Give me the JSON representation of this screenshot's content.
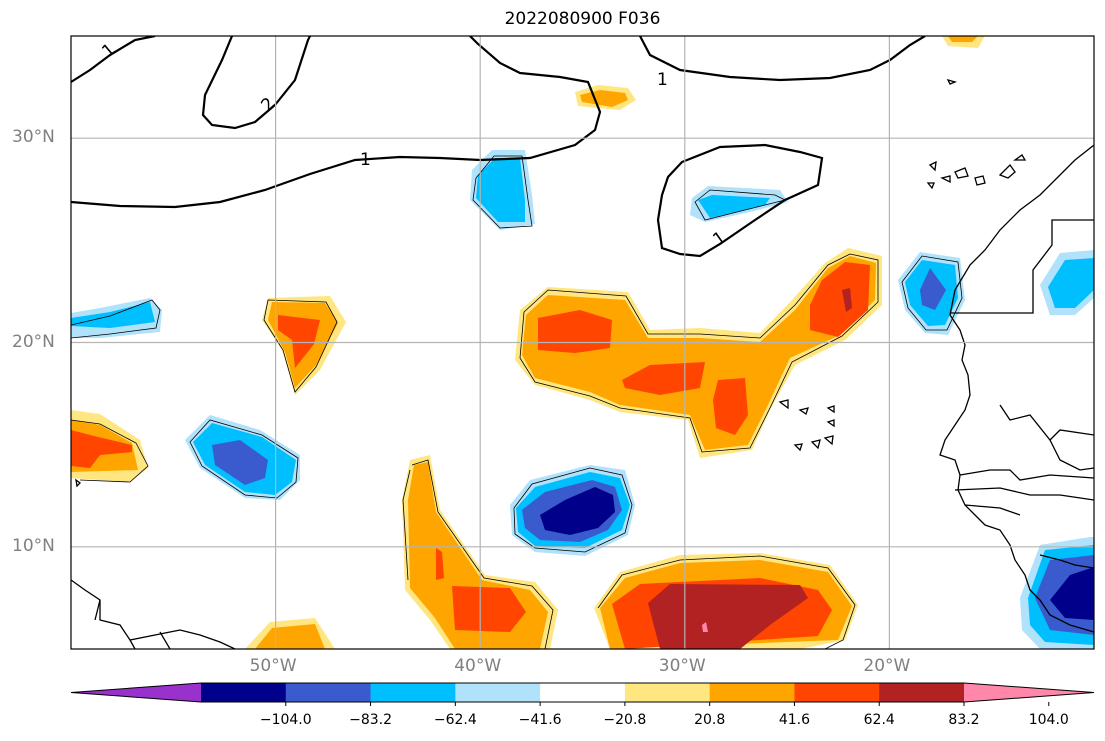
{
  "title": "2022080900 F036",
  "lat_ticks": [
    {
      "label": "30°N",
      "lat": 30
    },
    {
      "label": "20°N",
      "lat": 20
    },
    {
      "label": "10°N",
      "lat": 10
    }
  ],
  "lon_ticks": [
    {
      "label": "50°W",
      "lon": -50
    },
    {
      "label": "40°W",
      "lon": -40
    },
    {
      "label": "30°W",
      "lon": -30
    },
    {
      "label": "20°W",
      "lon": -20
    }
  ],
  "map_extent": {
    "lon_min": -60,
    "lon_max": -10,
    "lat_min": 5,
    "lat_max": 35
  },
  "contour_labels": [
    "1",
    "1",
    "1",
    "1",
    "2"
  ],
  "colorbar": {
    "ticks": [
      "−104.0",
      "−83.2",
      "−62.4",
      "−41.6",
      "−20.8",
      "20.8",
      "41.6",
      "62.4",
      "83.2",
      "104.0"
    ],
    "colors": [
      "#9932cc",
      "#00008b",
      "#3a5bcd",
      "#00bfff",
      "#b0e2fb",
      "#ffffff",
      "#ffe680",
      "#ffa500",
      "#ff4500",
      "#b22222",
      "#ff88aa"
    ]
  }
}
